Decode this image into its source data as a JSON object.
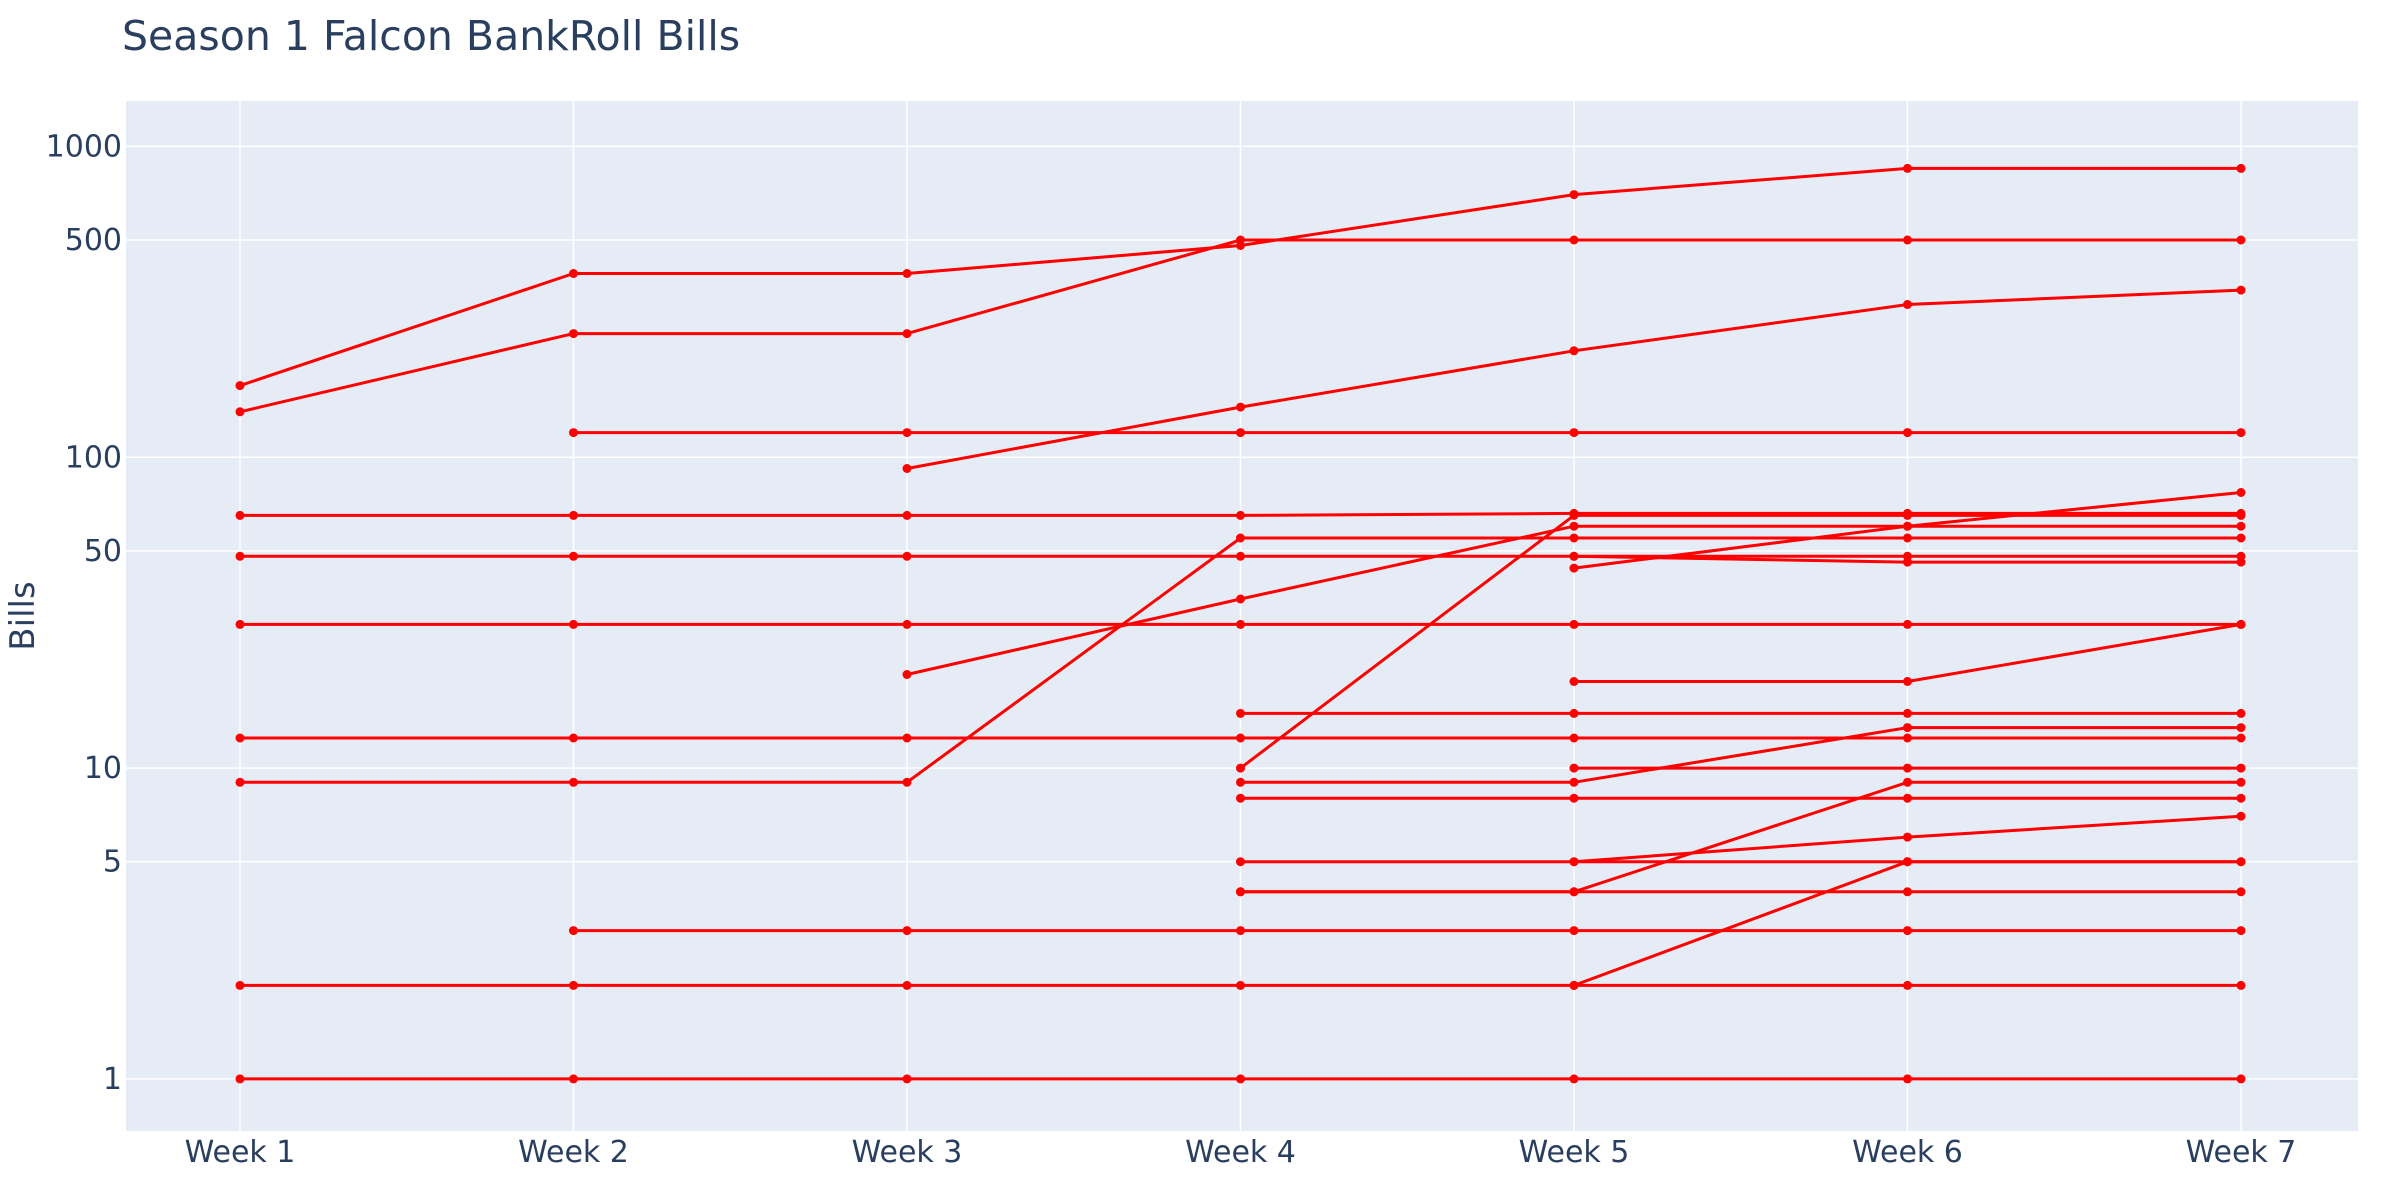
{
  "chart_data": {
    "type": "line",
    "title": "Season 1 Falcon BankRoll Bills",
    "xlabel": "",
    "ylabel": "Bills",
    "y_scale": "log",
    "ylim": [
      0.68,
      1400
    ],
    "grid": true,
    "legend": "none",
    "colors": {
      "background": "#e5ecf6",
      "grid": "#ffffff",
      "line": "#ff0000",
      "text": "#2a3f5f"
    },
    "categories": [
      "Week 1",
      "Week 2",
      "Week 3",
      "Week 4",
      "Week 5",
      "Week 6",
      "Week 7"
    ],
    "y_ticks": [
      {
        "value": 1,
        "label": "1"
      },
      {
        "value": 5,
        "label": "5"
      },
      {
        "value": 10,
        "label": "10"
      },
      {
        "value": 50,
        "label": "50"
      },
      {
        "value": 100,
        "label": "100"
      },
      {
        "value": 500,
        "label": "500"
      },
      {
        "value": 1000,
        "label": "1000"
      }
    ],
    "series": [
      {
        "values": [
          170,
          390,
          390,
          480,
          700,
          850,
          850
        ]
      },
      {
        "values": [
          140,
          250,
          250,
          500,
          500,
          500,
          500
        ]
      },
      {
        "values": [
          null,
          null,
          92,
          145,
          220,
          310,
          345
        ]
      },
      {
        "values": [
          null,
          120,
          120,
          120,
          120,
          120,
          120
        ]
      },
      {
        "values": [
          65,
          65,
          65,
          65,
          66,
          66,
          66
        ]
      },
      {
        "values": [
          48,
          48,
          48,
          48,
          48,
          48,
          48
        ]
      },
      {
        "values": [
          null,
          null,
          null,
          null,
          48,
          46,
          46
        ]
      },
      {
        "values": [
          29,
          29,
          29,
          29,
          29,
          29,
          29
        ]
      },
      {
        "values": [
          12.5,
          12.5,
          12.5,
          12.5,
          12.5,
          12.5,
          12.5
        ]
      },
      {
        "values": [
          9,
          9,
          9,
          55,
          55,
          55,
          55
        ]
      },
      {
        "values": [
          null,
          null,
          20,
          35,
          60,
          60,
          60
        ]
      },
      {
        "values": [
          null,
          null,
          null,
          10,
          65,
          65,
          65
        ]
      },
      {
        "values": [
          null,
          null,
          null,
          null,
          44,
          60,
          77
        ]
      },
      {
        "values": [
          null,
          null,
          null,
          15,
          15,
          15,
          15
        ]
      },
      {
        "values": [
          null,
          null,
          null,
          9,
          9,
          13.5,
          13.5
        ]
      },
      {
        "values": [
          null,
          null,
          null,
          8,
          8,
          8,
          8
        ]
      },
      {
        "values": [
          null,
          null,
          null,
          null,
          19,
          19,
          29
        ]
      },
      {
        "values": [
          null,
          null,
          null,
          null,
          10,
          10,
          10
        ]
      },
      {
        "values": [
          null,
          null,
          null,
          5,
          5,
          6,
          7
        ]
      },
      {
        "values": [
          null,
          null,
          null,
          4,
          4,
          4,
          4
        ]
      },
      {
        "values": [
          null,
          null,
          null,
          4,
          4,
          9,
          9
        ]
      },
      {
        "values": [
          null,
          null,
          null,
          null,
          5,
          5,
          5
        ]
      },
      {
        "values": [
          null,
          3,
          3,
          3,
          3,
          3,
          3
        ]
      },
      {
        "values": [
          2,
          2,
          2,
          2,
          2,
          2,
          2
        ]
      },
      {
        "values": [
          null,
          null,
          null,
          null,
          2,
          5,
          5
        ]
      },
      {
        "values": [
          1,
          1,
          1,
          1,
          1,
          1,
          1
        ]
      }
    ]
  }
}
